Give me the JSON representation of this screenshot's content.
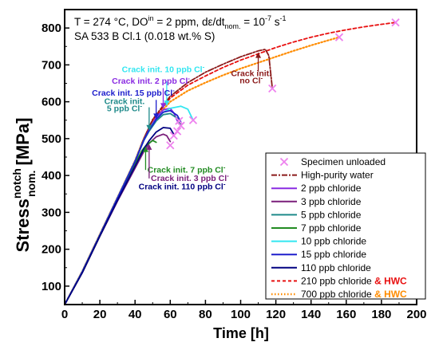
{
  "chart_data": {
    "type": "line",
    "title": "",
    "conditions_line1": "T = 274 °C, DO",
    "conditions_line1_sup": "in",
    "conditions_line1_rest": " = 2 ppm, dε/dt",
    "conditions_line1_sub": "nom.",
    "conditions_line1_tail": " = 10",
    "conditions_line1_exp": "-7",
    "conditions_line1_unit": " s",
    "conditions_line1_unit_exp": "-1",
    "conditions_line2": "SA 533 B Cl.1 (0.018 wt.% S)",
    "xlabel": "Time [h]",
    "ylabel_main": "Stress",
    "ylabel_sup": "notch",
    "ylabel_sub": "nom.",
    "ylabel_unit": " [MPa]",
    "xlim": [
      0,
      200
    ],
    "ylim": [
      50,
      850
    ],
    "xticks": [
      0,
      20,
      40,
      60,
      80,
      100,
      120,
      140,
      160,
      180,
      200
    ],
    "yticks": [
      100,
      200,
      300,
      400,
      500,
      600,
      700,
      800
    ],
    "grid": false,
    "legend_position": "bottom-right",
    "legend": {
      "unloaded": "Specimen unloaded",
      "hpw": "High-purity water",
      "c2": "2 ppb chloride",
      "c3": "3 ppb chloride",
      "c5": "5 ppb chloride",
      "c7": "7 ppb chloride",
      "c10": "10 ppb chloride",
      "c15": "15 ppb chloride",
      "c110": "110 ppb chloride",
      "c210": "210 ppb chloride",
      "c210_hwc": " & HWC",
      "c700": "700 ppb chloride",
      "c700_hwc": " & HWC"
    },
    "colors": {
      "hpw": "#8b1a1a",
      "c2": "#8a2be2",
      "c3": "#7a1f7a",
      "c5": "#1f8a8a",
      "c7": "#228b22",
      "c10": "#33e6f0",
      "c15": "#1e1ecc",
      "c110": "#000080",
      "c210": "#e81010",
      "c700": "#ff8c00",
      "unloaded": "#ee82ee"
    },
    "series": [
      {
        "key": "c700",
        "x": [
          0,
          10,
          20,
          30,
          40,
          45,
          50,
          60,
          70,
          80,
          90,
          100,
          110,
          120,
          130,
          140,
          150,
          156
        ],
        "y": [
          50,
          140,
          240,
          340,
          440,
          500,
          548,
          600,
          630,
          652,
          672,
          690,
          706,
          722,
          738,
          753,
          767,
          775
        ]
      },
      {
        "key": "c210",
        "x": [
          0,
          10,
          20,
          30,
          40,
          45,
          50,
          60,
          70,
          80,
          90,
          100,
          110,
          120,
          130,
          140,
          150,
          160,
          170,
          180,
          188
        ],
        "y": [
          50,
          140,
          240,
          340,
          440,
          500,
          550,
          610,
          645,
          670,
          693,
          713,
          730,
          747,
          762,
          775,
          786,
          795,
          803,
          810,
          815
        ]
      },
      {
        "key": "hpw",
        "x": [
          0,
          10,
          20,
          30,
          40,
          45,
          50,
          60,
          70,
          80,
          90,
          100,
          110,
          114,
          116,
          118
        ],
        "y": [
          50,
          140,
          240,
          340,
          440,
          500,
          552,
          615,
          652,
          680,
          702,
          722,
          738,
          742,
          725,
          636
        ]
      },
      {
        "key": "c2",
        "x": [
          0,
          10,
          20,
          30,
          40,
          45,
          48,
          52,
          56,
          60,
          62,
          64
        ],
        "y": [
          50,
          138,
          238,
          338,
          438,
          495,
          525,
          558,
          578,
          582,
          570,
          548
        ]
      },
      {
        "key": "c3",
        "x": [
          0,
          10,
          20,
          30,
          40,
          45,
          48,
          52,
          56,
          58,
          60
        ],
        "y": [
          50,
          136,
          235,
          330,
          420,
          465,
          487,
          505,
          512,
          508,
          492
        ]
      },
      {
        "key": "c5",
        "x": [
          0,
          10,
          20,
          30,
          40,
          45,
          48,
          52,
          56,
          60,
          64,
          66
        ],
        "y": [
          50,
          138,
          238,
          338,
          438,
          495,
          520,
          548,
          565,
          568,
          555,
          537
        ]
      },
      {
        "key": "c7",
        "x": [
          0,
          10,
          20,
          30,
          40,
          44,
          46,
          50,
          52
        ],
        "y": [
          50,
          137,
          236,
          335,
          432,
          468,
          480,
          495,
          490
        ]
      },
      {
        "key": "c10",
        "x": [
          0,
          10,
          20,
          30,
          40,
          45,
          50,
          55,
          60,
          66,
          70,
          73
        ],
        "y": [
          50,
          139,
          239,
          339,
          439,
          497,
          540,
          568,
          582,
          588,
          580,
          550
        ]
      },
      {
        "key": "c15",
        "x": [
          0,
          10,
          20,
          30,
          40,
          45,
          48,
          52,
          56,
          60,
          64,
          66
        ],
        "y": [
          50,
          138,
          238,
          338,
          438,
          496,
          523,
          552,
          572,
          576,
          563,
          545
        ]
      },
      {
        "key": "c110",
        "x": [
          0,
          10,
          20,
          30,
          40,
          45,
          48,
          52,
          56,
          60,
          62
        ],
        "y": [
          50,
          136,
          236,
          332,
          425,
          472,
          494,
          518,
          530,
          528,
          512
        ]
      }
    ],
    "unloaded_points": [
      {
        "x": 60,
        "y": 482
      },
      {
        "x": 62,
        "y": 508
      },
      {
        "x": 64,
        "y": 520
      },
      {
        "x": 65,
        "y": 548
      },
      {
        "x": 66,
        "y": 535
      },
      {
        "x": 73,
        "y": 550
      },
      {
        "x": 118,
        "y": 636
      },
      {
        "x": 156,
        "y": 775
      },
      {
        "x": 188,
        "y": 815
      }
    ],
    "annotations": [
      {
        "text": "Crack init. 10 ppb Cl",
        "key": "c10",
        "tx": 56,
        "ty": 680,
        "ax": 58,
        "ay": 655,
        "bx": 58,
        "by": 588,
        "anchor": "middle"
      },
      {
        "text": "Crack init. 2 ppb Cl",
        "key": "c2",
        "tx": 49,
        "ty": 649,
        "ax": 56,
        "ay": 637,
        "bx": 56,
        "by": 581,
        "anchor": "middle"
      },
      {
        "text": "Crack init. 15 ppb Cl",
        "key": "c15",
        "tx": 39,
        "ty": 617,
        "ax": 52,
        "ay": 605,
        "bx": 52,
        "by": 553,
        "anchor": "middle"
      },
      {
        "text": "Crack init.",
        "key": "c5",
        "tx": 34,
        "ty": 594,
        "ax": 48,
        "ay": 585,
        "bx": 48,
        "by": 522,
        "anchor": "middle"
      },
      {
        "text": "5 ppb Cl",
        "key": "c5",
        "tx": 34,
        "ty": 574,
        "ax": null,
        "ay": null,
        "bx": null,
        "by": null,
        "anchor": "middle"
      },
      {
        "text": "Crack init. 7 ppb Cl",
        "key": "c7",
        "tx": 47,
        "ty": 408,
        "ax": 46,
        "ay": 415,
        "bx": 46,
        "by": 479,
        "anchor": "start"
      },
      {
        "text": "Crack init. 3 ppb Cl",
        "key": "c3",
        "tx": 49,
        "ty": 385,
        "ax": 48,
        "ay": 392,
        "bx": 48,
        "by": 485,
        "anchor": "start"
      },
      {
        "text": "Crack init. 110 ppb Cl",
        "key": "c110",
        "tx": 42,
        "ty": 362,
        "ax": null,
        "ay": null,
        "bx": null,
        "by": null,
        "anchor": "start"
      },
      {
        "text": "Crack init.",
        "key": "hpw",
        "tx": 106,
        "ty": 670,
        "ax": 110,
        "ay": 682,
        "bx": 110,
        "by": 734,
        "anchor": "middle"
      },
      {
        "text": "no Cl",
        "key": "hpw",
        "tx": 106,
        "ty": 650,
        "ax": null,
        "ay": null,
        "bx": null,
        "by": null,
        "anchor": "middle"
      }
    ],
    "annotation_sup": "-"
  }
}
